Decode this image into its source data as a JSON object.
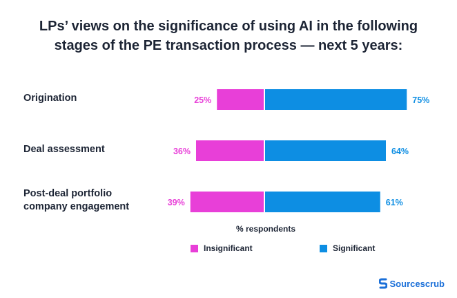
{
  "title_lines": [
    "LPs’ views on the significance of using AI in the following",
    "stages of the PE transaction process — next 5 years:"
  ],
  "colors": {
    "insignificant": "#e83fd8",
    "significant": "#0d8ee3",
    "text": "#1c2434"
  },
  "chart_data": {
    "type": "bar",
    "orientation": "horizontal-diverging",
    "categories": [
      "Origination",
      "Deal assessment",
      "Post-deal portfolio company engagement"
    ],
    "category_lines": [
      [
        "Origination"
      ],
      [
        "Deal assessment"
      ],
      [
        "Post-deal portfolio",
        "company engagement"
      ]
    ],
    "series": [
      {
        "name": "Insignificant",
        "values": [
          25,
          36,
          39
        ],
        "labels": [
          "25%",
          "36%",
          "39%"
        ]
      },
      {
        "name": "Significant",
        "values": [
          75,
          64,
          61
        ],
        "labels": [
          "75%",
          "64%",
          "61%"
        ]
      }
    ],
    "xlabel": "% respondents",
    "legend": "bottom"
  },
  "brand": {
    "name": "Sourcescrub",
    "icon": "sourcescrub-logo-icon"
  }
}
